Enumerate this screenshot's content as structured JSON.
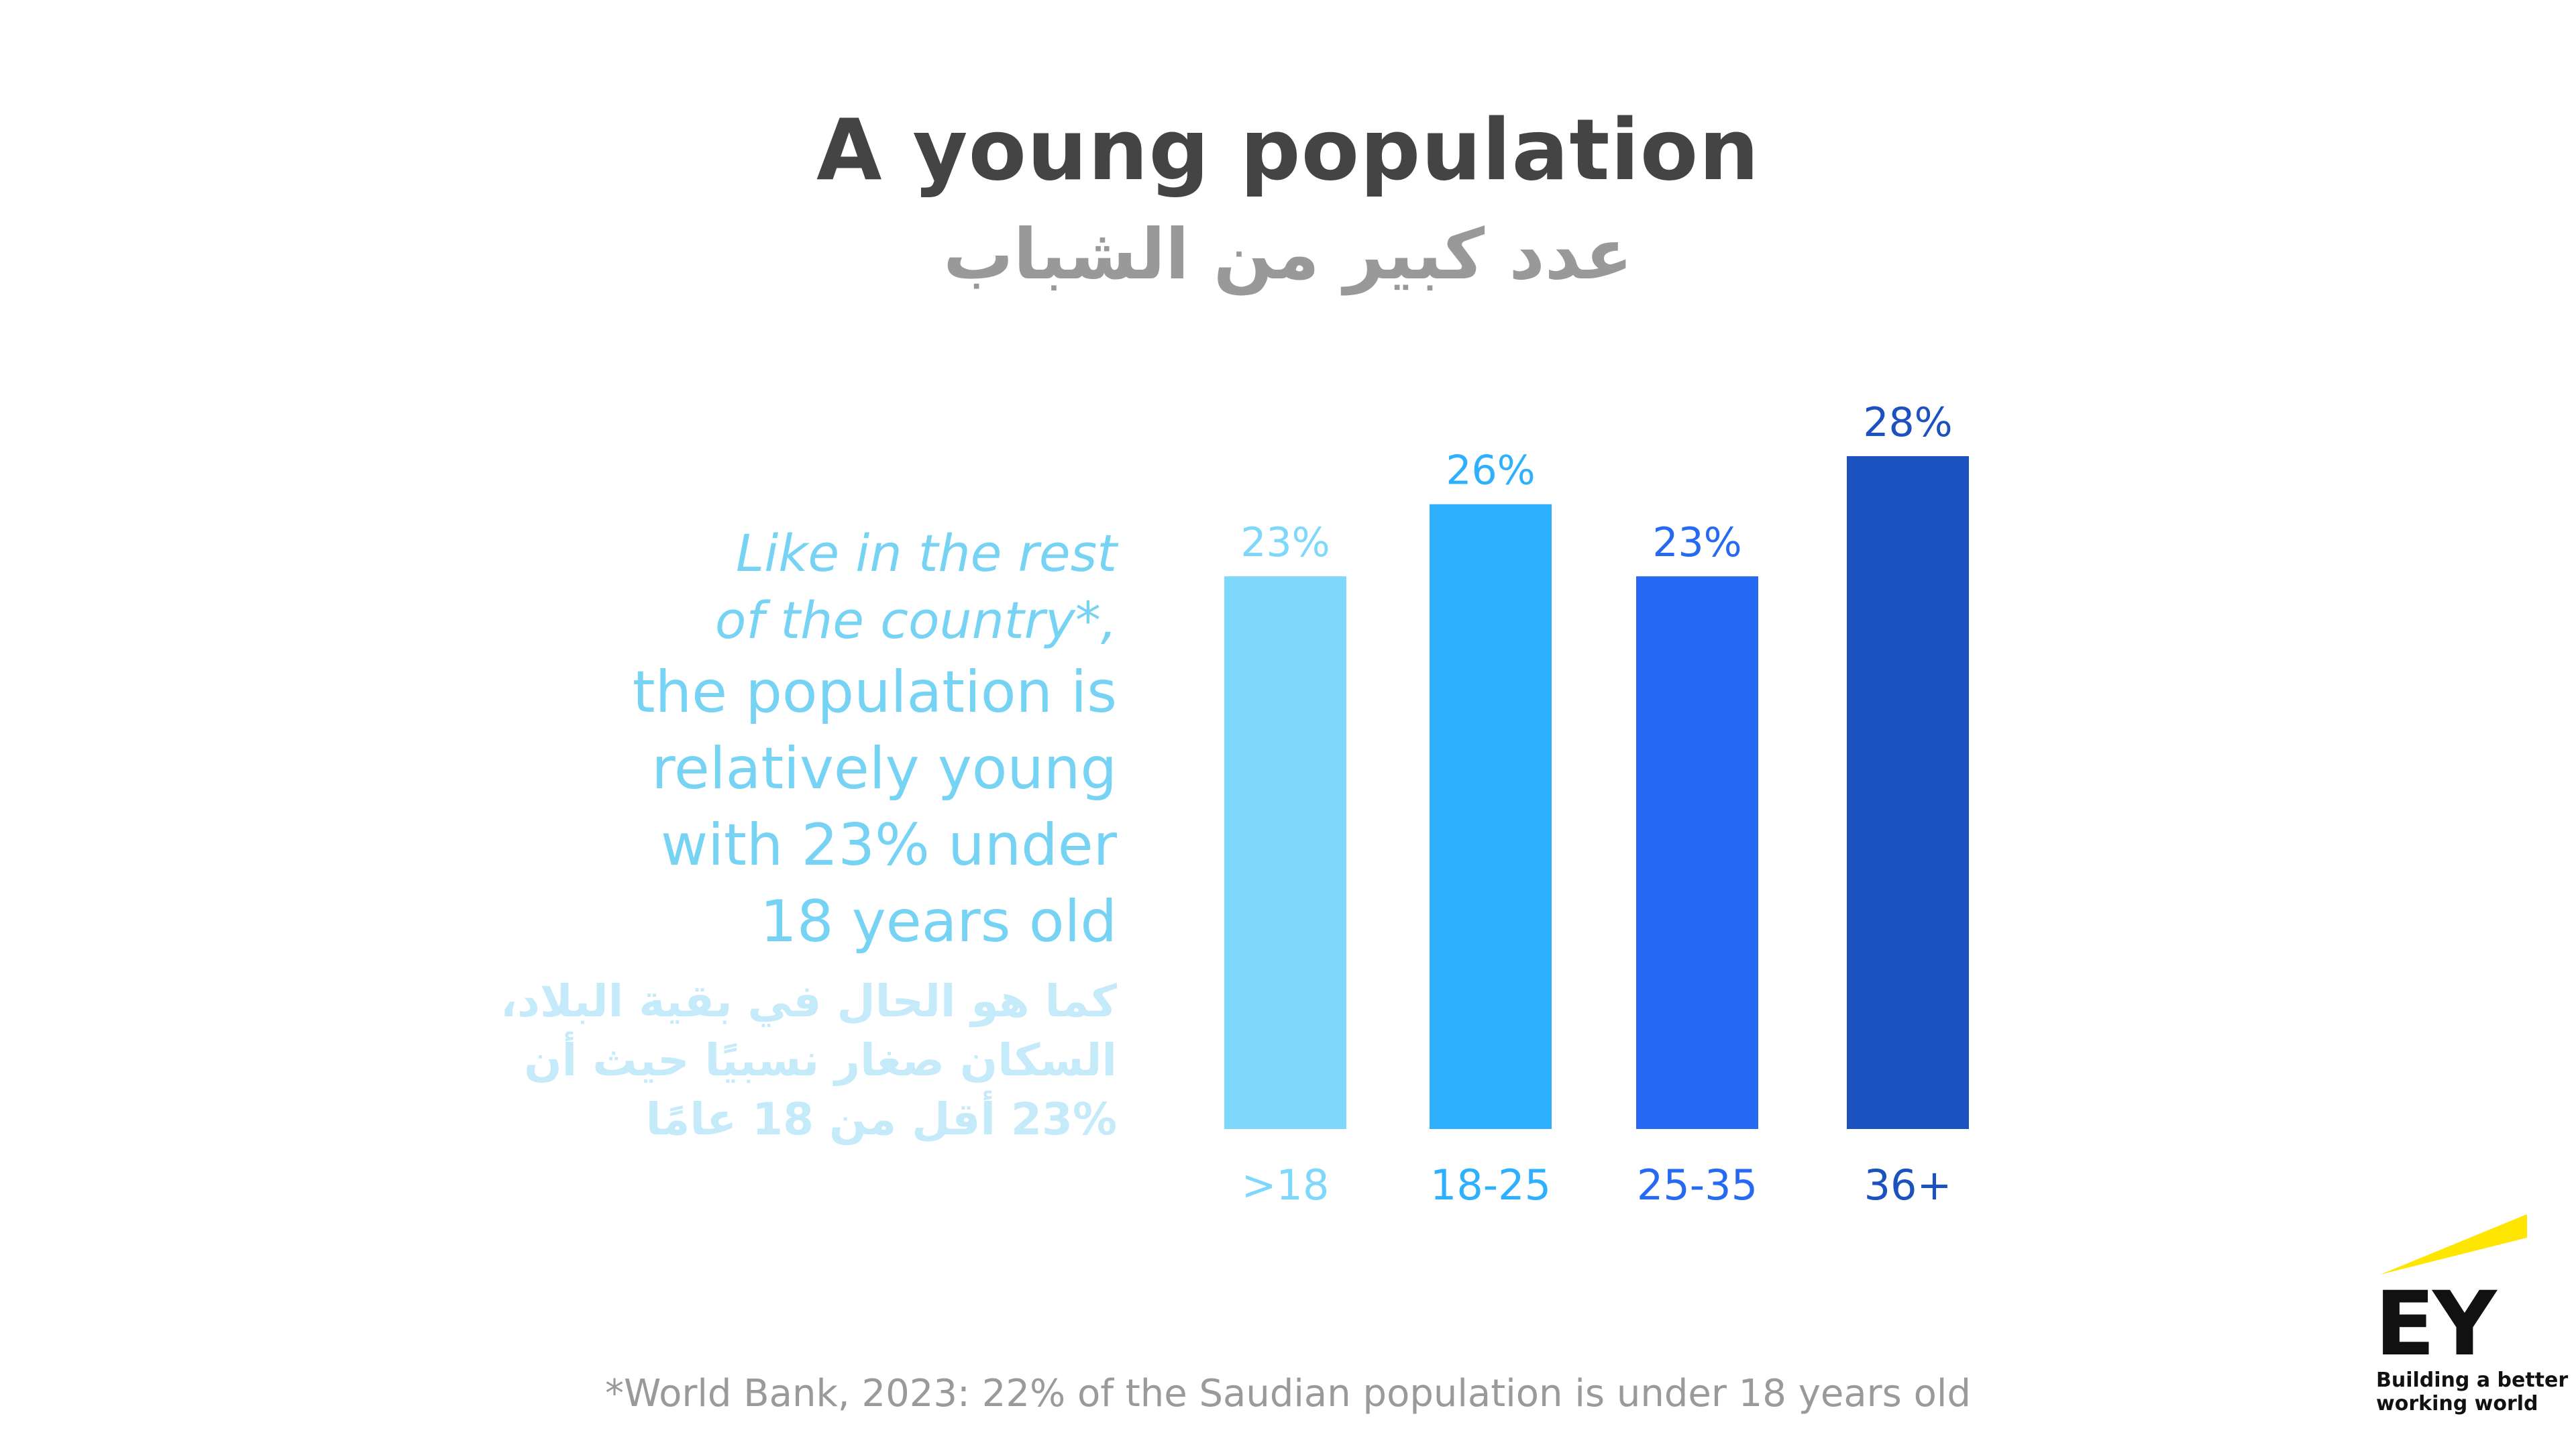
{
  "header": {
    "title": "A young population",
    "title_ar": "عدد كبير من الشباب"
  },
  "text_block": {
    "italic_lines": [
      "Like in the rest",
      "of the country*,"
    ],
    "main_lines": [
      "the population is",
      "relatively young",
      "with 23% under",
      "18 years old"
    ],
    "arabic_lines": [
      "كما هو الحال في بقية البلاد،",
      "السكان صغار نسبيًا حيث أن",
      "23% أقل من 18 عامًا"
    ]
  },
  "chart_data": {
    "type": "bar",
    "categories": [
      ">18",
      "18-25",
      "25-35",
      "36+"
    ],
    "values": [
      23,
      26,
      23,
      28
    ],
    "data_labels": [
      "23%",
      "26%",
      "23%",
      "28%"
    ],
    "colors": [
      "#7DD8FB",
      "#2EB0FE",
      "#2669F3",
      "#1C52C0"
    ],
    "title": "",
    "xlabel": "",
    "ylabel": "",
    "ylim": [
      0,
      28
    ],
    "grid": false
  },
  "footnote": "*World Bank, 2023: 22% of the Saudian population is under 18 years old",
  "logo": {
    "name": "EY",
    "tagline_lines": [
      "Building a better",
      "working world"
    ],
    "accent_color": "#FFE600"
  }
}
